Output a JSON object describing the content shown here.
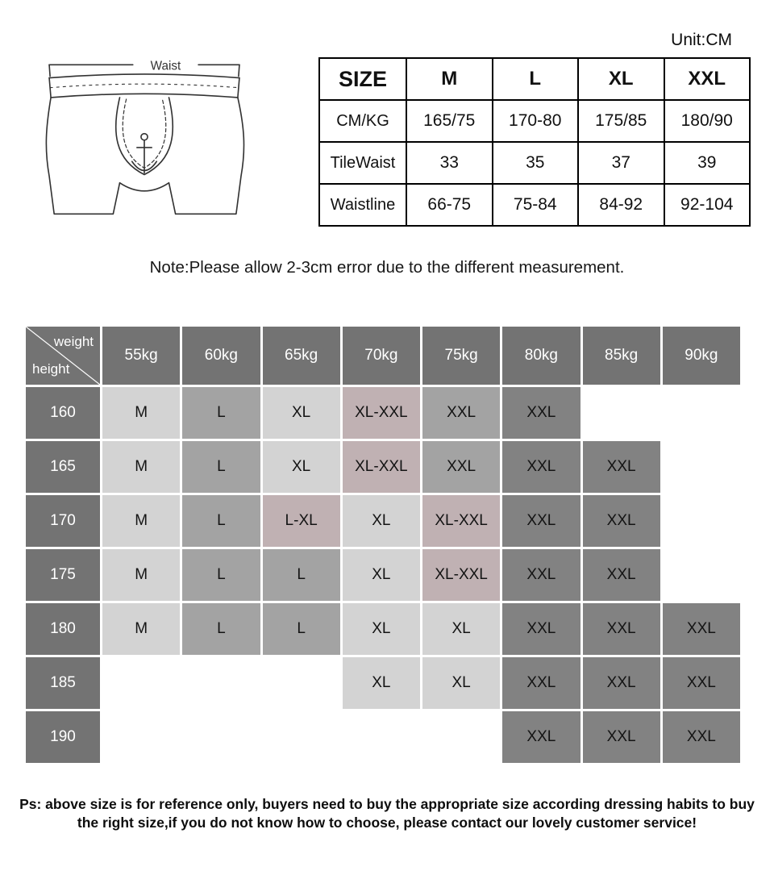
{
  "unit_label": "Unit:CM",
  "diagram": {
    "waist_label": "Waist"
  },
  "note": "Note:Please allow 2-3cm error due to the different measurement.",
  "footer": {
    "line1": "Ps: above size is for reference only, buyers need to buy the appropriate size according dressing habits to buy",
    "line2": "the right size,if you do not know how to choose, please contact our lovely customer service!"
  },
  "colors": {
    "header_bg": "#737373",
    "tones": {
      "light": "#d3d3d3",
      "medium": "#a3a3a3",
      "mauve": "#c0b1b3",
      "dark": "#828282"
    }
  },
  "chart_data": [
    {
      "type": "table",
      "columns": [
        "SIZE",
        "M",
        "L",
        "XL",
        "XXL"
      ],
      "rows": [
        [
          "CM/KG",
          "165/75",
          "170-80",
          "175/85",
          "180/90"
        ],
        [
          "TileWaist",
          "33",
          "35",
          "37",
          "39"
        ],
        [
          "Waistline",
          "66-75",
          "75-84",
          "84-92",
          "92-104"
        ]
      ]
    },
    {
      "type": "heatmap",
      "corner_top": "weight",
      "corner_bottom": "height",
      "weights": [
        "55kg",
        "60kg",
        "65kg",
        "70kg",
        "75kg",
        "80kg",
        "85kg",
        "90kg"
      ],
      "rows": [
        {
          "height": "160",
          "cells": [
            [
              "M",
              "light"
            ],
            [
              "L",
              "medium"
            ],
            [
              "XL",
              "light"
            ],
            [
              "XL-XXL",
              "mauve"
            ],
            [
              "XXL",
              "medium"
            ],
            [
              "XXL",
              "dark"
            ],
            [
              "",
              "empty"
            ],
            [
              "",
              "empty"
            ]
          ]
        },
        {
          "height": "165",
          "cells": [
            [
              "M",
              "light"
            ],
            [
              "L",
              "medium"
            ],
            [
              "XL",
              "light"
            ],
            [
              "XL-XXL",
              "mauve"
            ],
            [
              "XXL",
              "medium"
            ],
            [
              "XXL",
              "dark"
            ],
            [
              "XXL",
              "dark"
            ],
            [
              "",
              "empty"
            ]
          ]
        },
        {
          "height": "170",
          "cells": [
            [
              "M",
              "light"
            ],
            [
              "L",
              "medium"
            ],
            [
              "L-XL",
              "mauve"
            ],
            [
              "XL",
              "light"
            ],
            [
              "XL-XXL",
              "mauve"
            ],
            [
              "XXL",
              "dark"
            ],
            [
              "XXL",
              "dark"
            ],
            [
              "",
              "empty"
            ]
          ]
        },
        {
          "height": "175",
          "cells": [
            [
              "M",
              "light"
            ],
            [
              "L",
              "medium"
            ],
            [
              "L",
              "medium"
            ],
            [
              "XL",
              "light"
            ],
            [
              "XL-XXL",
              "mauve"
            ],
            [
              "XXL",
              "dark"
            ],
            [
              "XXL",
              "dark"
            ],
            [
              "",
              "empty"
            ]
          ]
        },
        {
          "height": "180",
          "cells": [
            [
              "M",
              "light"
            ],
            [
              "L",
              "medium"
            ],
            [
              "L",
              "medium"
            ],
            [
              "XL",
              "light"
            ],
            [
              "XL",
              "light"
            ],
            [
              "XXL",
              "dark"
            ],
            [
              "XXL",
              "dark"
            ],
            [
              "XXL",
              "dark"
            ]
          ]
        },
        {
          "height": "185",
          "cells": [
            [
              "",
              "empty"
            ],
            [
              "",
              "empty"
            ],
            [
              "",
              "empty"
            ],
            [
              "XL",
              "light"
            ],
            [
              "XL",
              "light"
            ],
            [
              "XXL",
              "dark"
            ],
            [
              "XXL",
              "dark"
            ],
            [
              "XXL",
              "dark"
            ]
          ]
        },
        {
          "height": "190",
          "cells": [
            [
              "",
              "empty"
            ],
            [
              "",
              "empty"
            ],
            [
              "",
              "empty"
            ],
            [
              "",
              "empty"
            ],
            [
              "",
              "empty"
            ],
            [
              "XXL",
              "dark"
            ],
            [
              "XXL",
              "dark"
            ],
            [
              "XXL",
              "dark"
            ]
          ]
        }
      ]
    }
  ]
}
